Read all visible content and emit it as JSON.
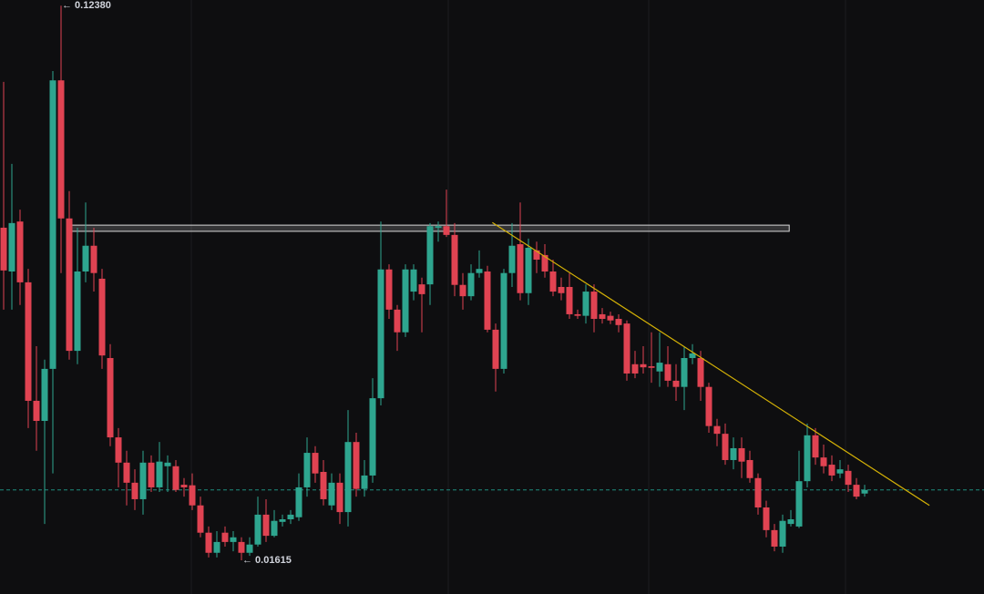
{
  "chart_data": {
    "type": "candlestick",
    "up_color": "#2ea58f",
    "down_color": "#e04352",
    "ylim": [
      0.0096,
      0.1249
    ],
    "open": [
      0.0807,
      0.0722,
      0.0819,
      0.0701,
      0.0471,
      0.0432,
      0.0533,
      0.1093,
      0.0825,
      0.0568,
      0.0722,
      0.0772,
      0.0708,
      0.0554,
      0.04,
      0.0351,
      0.0312,
      0.028,
      0.0351,
      0.0303,
      0.0344,
      0.0344,
      0.0308,
      0.0307,
      0.0268,
      0.0215,
      0.0176,
      0.0215,
      0.0197,
      0.0197,
      0.0176,
      0.0192,
      0.025,
      0.0209,
      0.0236,
      0.0241,
      0.0245,
      0.0303,
      0.037,
      0.0333,
      0.0268,
      0.0312,
      0.0255,
      0.0391,
      0.03,
      0.0326,
      0.0476,
      0.0726,
      0.0648,
      0.0604,
      0.0683,
      0.0697,
      0.0697,
      0.0807,
      0.081,
      0.0793,
      0.0696,
      0.0674,
      0.0719,
      0.0722,
      0.0609,
      0.0533,
      0.0719,
      0.0775,
      0.068,
      0.0763,
      0.0754,
      0.0722,
      0.0692,
      0.0692,
      0.0639,
      0.0636,
      0.0683,
      0.0639,
      0.0636,
      0.063,
      0.0621,
      0.0542,
      0.0542,
      0.0538,
      0.0528,
      0.0542,
      0.051,
      0.0498,
      0.0554,
      0.0554,
      0.0498,
      0.0422,
      0.0407,
      0.0356,
      0.0379,
      0.0356,
      0.0321,
      0.0264,
      0.022,
      0.0188,
      0.0232,
      0.0227,
      0.0315,
      0.0404,
      0.0361,
      0.0347,
      0.033,
      0.0335,
      0.0308,
      0.0291
    ],
    "high": [
      0.109,
      0.0931,
      0.0842,
      0.0727,
      0.0577,
      0.0551,
      0.1111,
      0.1238,
      0.0878,
      0.0807,
      0.0856,
      0.0807,
      0.0727,
      0.0581,
      0.0418,
      0.0374,
      0.0338,
      0.0374,
      0.0365,
      0.0391,
      0.0365,
      0.0356,
      0.0321,
      0.033,
      0.0285,
      0.0227,
      0.0218,
      0.0227,
      0.0218,
      0.0206,
      0.0206,
      0.0285,
      0.028,
      0.0259,
      0.025,
      0.0259,
      0.033,
      0.04,
      0.0383,
      0.0356,
      0.033,
      0.033,
      0.0453,
      0.0409,
      0.0356,
      0.0515,
      0.0819,
      0.0736,
      0.0657,
      0.0736,
      0.0736,
      0.071,
      0.0816,
      0.0819,
      0.0881,
      0.0816,
      0.0719,
      0.0736,
      0.0763,
      0.0733,
      0.0621,
      0.0727,
      0.0816,
      0.0856,
      0.0786,
      0.078,
      0.0775,
      0.0745,
      0.071,
      0.0719,
      0.0648,
      0.0697,
      0.0697,
      0.0651,
      0.0644,
      0.0639,
      0.0627,
      0.0568,
      0.0577,
      0.0604,
      0.0604,
      0.0577,
      0.0542,
      0.0577,
      0.0581,
      0.0568,
      0.0506,
      0.0436,
      0.0427,
      0.04,
      0.04,
      0.0374,
      0.033,
      0.0277,
      0.0232,
      0.025,
      0.0259,
      0.0374,
      0.0427,
      0.0418,
      0.0386,
      0.0365,
      0.0356,
      0.0347,
      0.0321,
      0.0308
    ],
    "low": [
      0.0648,
      0.0648,
      0.0657,
      0.0418,
      0.0374,
      0.0232,
      0.033,
      0.0719,
      0.0551,
      0.0542,
      0.0701,
      0.0683,
      0.0533,
      0.0383,
      0.0303,
      0.0268,
      0.0259,
      0.025,
      0.0294,
      0.0294,
      0.0294,
      0.0294,
      0.0285,
      0.0259,
      0.0206,
      0.0167,
      0.0167,
      0.0188,
      0.0179,
      0.01615,
      0.017,
      0.0188,
      0.0197,
      0.0206,
      0.0227,
      0.0232,
      0.0238,
      0.0285,
      0.0312,
      0.0268,
      0.0259,
      0.0232,
      0.0227,
      0.0285,
      0.0285,
      0.0312,
      0.0462,
      0.063,
      0.0568,
      0.0595,
      0.0666,
      0.0604,
      0.0657,
      0.078,
      0.0789,
      0.0674,
      0.0648,
      0.0666,
      0.071,
      0.0604,
      0.0489,
      0.0524,
      0.0692,
      0.0666,
      0.0657,
      0.0719,
      0.071,
      0.0674,
      0.0666,
      0.063,
      0.063,
      0.0621,
      0.0604,
      0.0621,
      0.062,
      0.0604,
      0.051,
      0.0515,
      0.0524,
      0.0506,
      0.0498,
      0.0498,
      0.0471,
      0.0453,
      0.0542,
      0.0471,
      0.0409,
      0.0383,
      0.0347,
      0.0338,
      0.0321,
      0.0312,
      0.025,
      0.0206,
      0.0179,
      0.0176,
      0.0227,
      0.0224,
      0.0303,
      0.0347,
      0.033,
      0.0315,
      0.0321,
      0.0294,
      0.028,
      0.0285
    ],
    "close": [
      0.0724,
      0.0816,
      0.0701,
      0.0471,
      0.0432,
      0.0533,
      0.1093,
      0.0825,
      0.0568,
      0.0722,
      0.0772,
      0.0719,
      0.0559,
      0.04,
      0.0351,
      0.0312,
      0.028,
      0.0351,
      0.0303,
      0.0353,
      0.0351,
      0.0298,
      0.0303,
      0.0268,
      0.0215,
      0.0176,
      0.0197,
      0.0197,
      0.0206,
      0.0176,
      0.0192,
      0.025,
      0.0209,
      0.0238,
      0.0241,
      0.025,
      0.0303,
      0.037,
      0.033,
      0.028,
      0.0312,
      0.0255,
      0.0391,
      0.03,
      0.0326,
      0.0476,
      0.0726,
      0.0648,
      0.0604,
      0.0726,
      0.0726,
      0.0678,
      0.081,
      0.081,
      0.0793,
      0.0696,
      0.0674,
      0.0719,
      0.0727,
      0.0609,
      0.0533,
      0.0719,
      0.0772,
      0.068,
      0.0768,
      0.0745,
      0.0722,
      0.0683,
      0.068,
      0.0639,
      0.0636,
      0.0683,
      0.063,
      0.063,
      0.0627,
      0.0618,
      0.0524,
      0.0524,
      0.0536,
      0.0535,
      0.0545,
      0.051,
      0.0498,
      0.0554,
      0.0563,
      0.0498,
      0.0422,
      0.0407,
      0.0356,
      0.0379,
      0.0353,
      0.0321,
      0.0264,
      0.022,
      0.0188,
      0.0238,
      0.0241,
      0.0315,
      0.0404,
      0.0361,
      0.0344,
      0.0326,
      0.0338,
      0.0308,
      0.0285,
      0.0298
    ],
    "annotations": [
      {
        "text": "← 0.12380",
        "value": 0.1238
      },
      {
        "text": "← 0.01615",
        "value": 0.01615
      }
    ],
    "price_line": {
      "value": 0.0298,
      "color": "#1e8c7e"
    },
    "zone": {
      "x": [
        7.9,
        95.8
      ],
      "y": [
        0.0812,
        0.08
      ]
    },
    "trendline": {
      "x": [
        59.6,
        112.9
      ],
      "y": [
        0.0817,
        0.0268
      ],
      "color": "#d4b106"
    }
  }
}
